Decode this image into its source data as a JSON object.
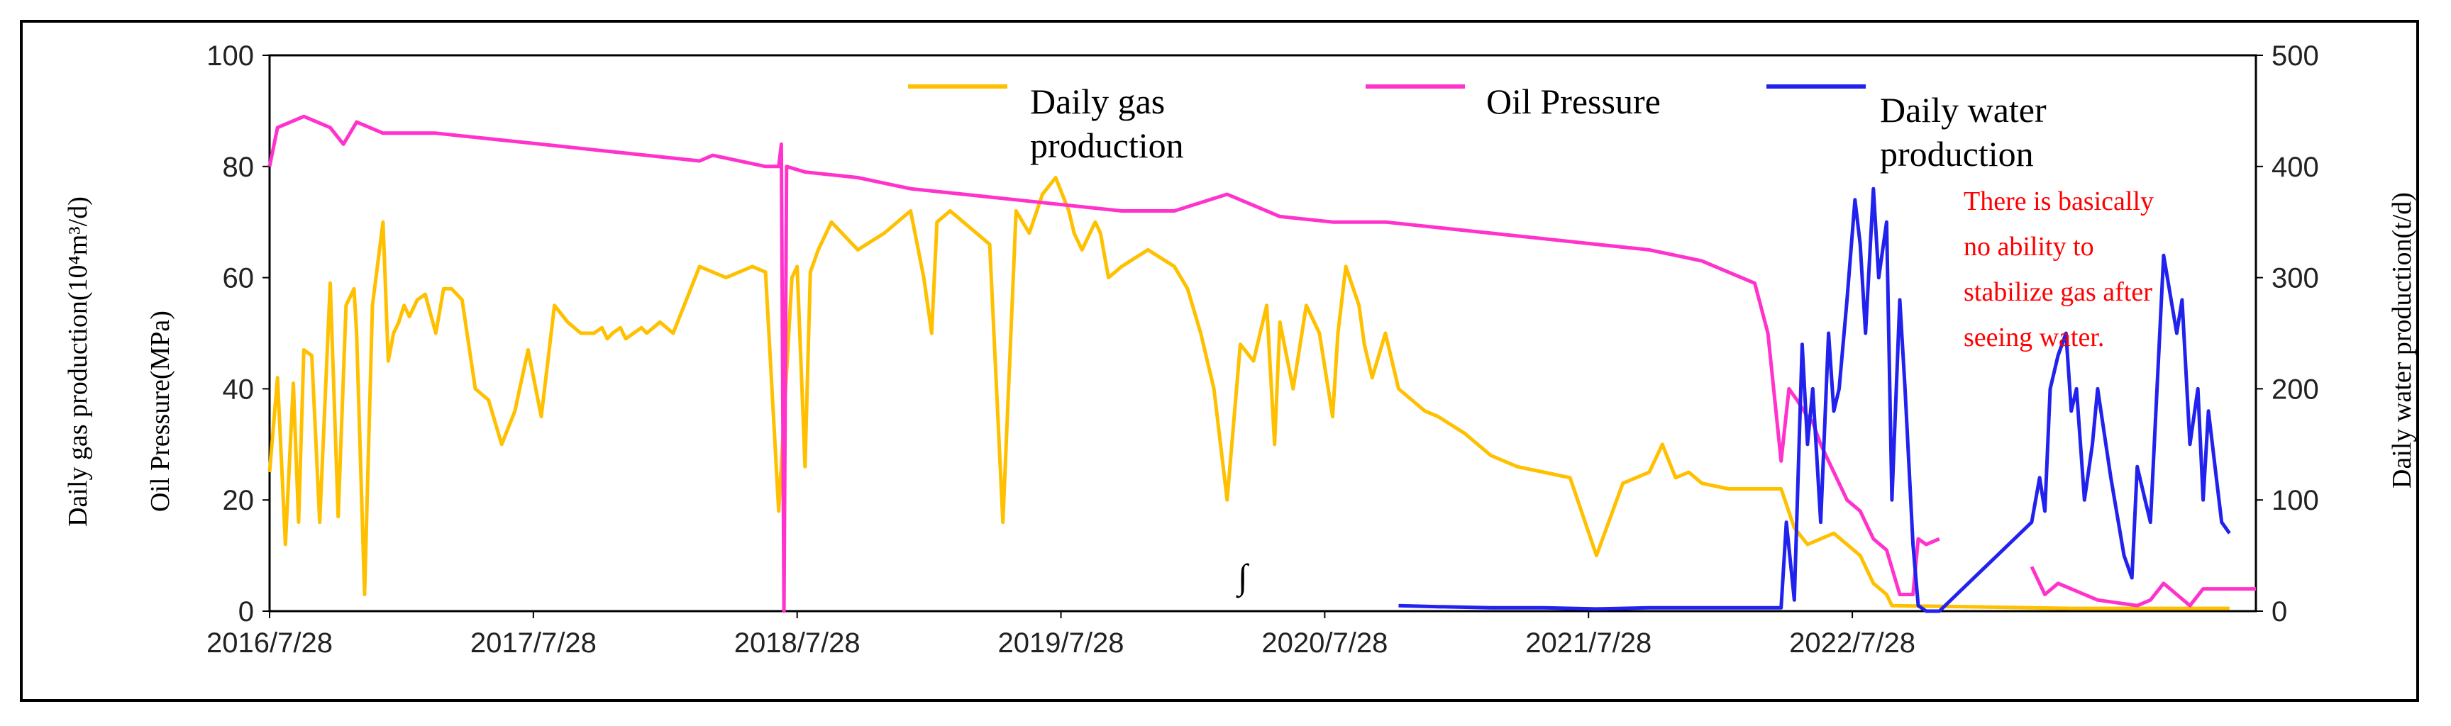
{
  "chart_data": {
    "type": "line",
    "x_tick_labels": [
      "2016/7/28",
      "2017/7/28",
      "2018/7/28",
      "2019/7/28",
      "2020/7/28",
      "2021/7/28",
      "2022/7/28"
    ],
    "x_range": [
      2016.57,
      2024.1
    ],
    "left_axis": {
      "ticks": [
        0,
        20,
        40,
        60,
        80,
        100
      ],
      "ylim": [
        0,
        100
      ]
    },
    "right_axis": {
      "ticks": [
        0,
        100,
        200,
        300,
        400,
        500
      ],
      "ylim": [
        0,
        500
      ]
    },
    "ylabel_left_outer": "Daily gas production(10⁴m³/d)",
    "ylabel_left_inner": "Oil Pressure(MPa)",
    "ylabel_right": "Daily water production(t/d)",
    "annotation": [
      "There is basically",
      "no ability to",
      "stabilize gas after",
      "seeing water."
    ],
    "stray_mark": "∫",
    "colors": {
      "gas": "#ffc000",
      "pressure": "#ff33cc",
      "water": "#2222ee",
      "annotation": "#ff0000"
    },
    "series": [
      {
        "name": "Daily gas production",
        "legend_lines": [
          "Daily gas",
          "production"
        ],
        "axis": "left",
        "color": "#ffc000",
        "x": [
          2016.57,
          2016.6,
          2016.63,
          2016.66,
          2016.68,
          2016.7,
          2016.73,
          2016.76,
          2016.8,
          2016.83,
          2016.86,
          2016.89,
          2016.9,
          2016.93,
          2016.96,
          2017.0,
          2017.02,
          2017.04,
          2017.06,
          2017.08,
          2017.1,
          2017.13,
          2017.16,
          2017.2,
          2017.23,
          2017.26,
          2017.3,
          2017.35,
          2017.4,
          2017.45,
          2017.5,
          2017.55,
          2017.6,
          2017.65,
          2017.7,
          2017.75,
          2017.8,
          2017.83,
          2017.85,
          2017.87,
          2017.9,
          2017.92,
          2017.95,
          2017.98,
          2018.0,
          2018.05,
          2018.1,
          2018.2,
          2018.3,
          2018.4,
          2018.45,
          2018.5,
          2018.55,
          2018.57,
          2018.6,
          2018.62,
          2018.65,
          2018.7,
          2018.8,
          2018.9,
          2019.0,
          2019.05,
          2019.08,
          2019.1,
          2019.15,
          2019.2,
          2019.3,
          2019.35,
          2019.4,
          2019.45,
          2019.5,
          2019.55,
          2019.6,
          2019.62,
          2019.65,
          2019.7,
          2019.72,
          2019.75,
          2019.8,
          2019.9,
          2020.0,
          2020.05,
          2020.1,
          2020.15,
          2020.2,
          2020.25,
          2020.3,
          2020.35,
          2020.38,
          2020.4,
          2020.45,
          2020.5,
          2020.55,
          2020.6,
          2020.62,
          2020.65,
          2020.7,
          2020.72,
          2020.75,
          2020.8,
          2020.85,
          2020.9,
          2020.95,
          2021.0,
          2021.1,
          2021.2,
          2021.3,
          2021.4,
          2021.5,
          2021.6,
          2021.7,
          2021.8,
          2021.85,
          2021.9,
          2021.95,
          2022.0,
          2022.1,
          2022.2,
          2022.3,
          2022.35,
          2022.4,
          2022.45,
          2022.5,
          2022.55,
          2022.6,
          2022.62,
          2022.65,
          2022.7,
          2022.72,
          2023.4,
          2023.6,
          2023.8,
          2024.0
        ],
        "values": [
          25,
          42,
          12,
          41,
          16,
          47,
          46,
          16,
          59,
          17,
          55,
          58,
          50,
          3,
          55,
          70,
          45,
          50,
          52,
          55,
          53,
          56,
          57,
          50,
          58,
          58,
          56,
          40,
          38,
          30,
          36,
          47,
          35,
          55,
          52,
          50,
          50,
          51,
          49,
          50,
          51,
          49,
          50,
          51,
          50,
          52,
          50,
          62,
          60,
          62,
          61,
          18,
          60,
          62,
          26,
          61,
          65,
          70,
          65,
          68,
          72,
          60,
          50,
          70,
          72,
          70,
          66,
          16,
          72,
          68,
          75,
          78,
          72,
          68,
          65,
          70,
          68,
          60,
          62,
          65,
          62,
          58,
          50,
          40,
          20,
          48,
          45,
          55,
          30,
          52,
          40,
          55,
          50,
          35,
          50,
          62,
          55,
          48,
          42,
          50,
          40,
          38,
          36,
          35,
          32,
          28,
          26,
          25,
          24,
          10,
          23,
          25,
          30,
          24,
          25,
          23,
          22,
          22,
          22,
          15,
          12,
          13,
          14,
          12,
          10,
          8,
          5,
          3,
          1,
          0.5,
          0.5,
          0.5,
          0.5
        ]
      },
      {
        "name": "Oil Pressure",
        "legend_lines": [
          "Oil Pressure"
        ],
        "axis": "left",
        "color": "#ff33cc",
        "x": [
          2016.57,
          2016.6,
          2016.65,
          2016.7,
          2016.75,
          2016.8,
          2016.85,
          2016.9,
          2017.0,
          2017.2,
          2017.4,
          2017.6,
          2017.8,
          2018.0,
          2018.2,
          2018.25,
          2018.45,
          2018.5,
          2018.51,
          2018.52,
          2018.53,
          2018.6,
          2018.8,
          2019.0,
          2019.2,
          2019.4,
          2019.6,
          2019.8,
          2020.0,
          2020.2,
          2020.4,
          2020.6,
          2020.8,
          2021.0,
          2021.2,
          2021.4,
          2021.6,
          2021.8,
          2021.9,
          2022.0,
          2022.1,
          2022.2,
          2022.25,
          2022.3,
          2022.33,
          2022.36,
          2022.4,
          2022.42,
          2022.45,
          2022.5,
          2022.55,
          2022.6,
          2022.65,
          2022.7,
          2022.75,
          2022.8,
          2022.82,
          2022.85,
          2022.9,
          2023.2,
          2023.25,
          2023.3,
          2023.35,
          2023.5,
          2023.65,
          2023.7,
          2023.75,
          2023.8,
          2023.85,
          2023.9,
          2024.0,
          2024.1
        ],
        "values": [
          80,
          87,
          88,
          89,
          88,
          87,
          84,
          88,
          86,
          86,
          85,
          84,
          83,
          82,
          81,
          82,
          80,
          80,
          84,
          0,
          80,
          79,
          78,
          76,
          75,
          74,
          73,
          72,
          72,
          75,
          71,
          70,
          70,
          69,
          68,
          67,
          66,
          65,
          64,
          63,
          61,
          59,
          50,
          27,
          40,
          38,
          35,
          34,
          30,
          25,
          20,
          18,
          13,
          11,
          3,
          3,
          13,
          12,
          13,
          null,
          8,
          3,
          5,
          2,
          1,
          2,
          5,
          3,
          1,
          4,
          4,
          4
        ]
      },
      {
        "name": "Daily water production",
        "legend_lines": [
          "Daily water",
          "production"
        ],
        "axis": "right",
        "color": "#2222ee",
        "x": [
          2020.85,
          2021.0,
          2021.2,
          2021.4,
          2021.6,
          2021.8,
          2022.0,
          2022.1,
          2022.3,
          2022.32,
          2022.35,
          2022.38,
          2022.4,
          2022.42,
          2022.45,
          2022.48,
          2022.5,
          2022.52,
          2022.55,
          2022.58,
          2022.6,
          2022.62,
          2022.65,
          2022.67,
          2022.7,
          2022.72,
          2022.75,
          2022.77,
          2022.8,
          2022.82,
          2022.85,
          2022.87,
          2022.9,
          2023.25,
          2023.28,
          2023.3,
          2023.32,
          2023.35,
          2023.38,
          2023.4,
          2023.42,
          2023.45,
          2023.48,
          2023.5,
          2023.55,
          2023.6,
          2023.63,
          2023.65,
          2023.68,
          2023.7,
          2023.75,
          2023.8,
          2023.82,
          2023.85,
          2023.88,
          2023.9,
          2023.92,
          2023.95,
          2023.97,
          2024.0
        ],
        "values": [
          5,
          4,
          3,
          3,
          2,
          3,
          3,
          3,
          3,
          80,
          10,
          240,
          150,
          200,
          80,
          250,
          180,
          200,
          280,
          370,
          330,
          250,
          380,
          300,
          350,
          100,
          280,
          200,
          60,
          5,
          0,
          0,
          0,
          80,
          120,
          90,
          200,
          230,
          250,
          180,
          200,
          100,
          150,
          200,
          120,
          50,
          30,
          130,
          100,
          80,
          320,
          250,
          280,
          150,
          200,
          100,
          180,
          120,
          80,
          70
        ]
      }
    ]
  }
}
